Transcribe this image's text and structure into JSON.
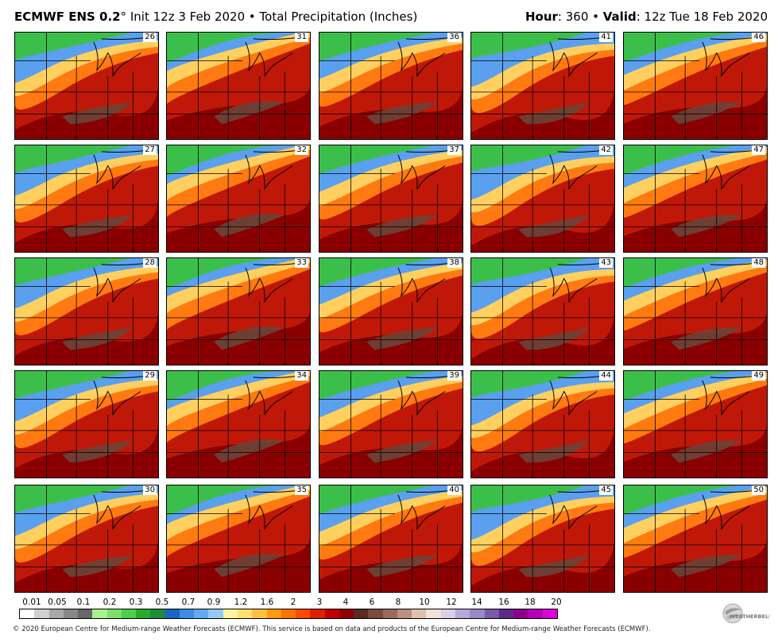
{
  "header": {
    "model": "ECMWF ENS 0.2",
    "degree": "°",
    "init": " Init 12z 3 Feb 2020 • Total Precipitation (Inches)",
    "hour_label": "Hour",
    "hour_value": ": 360 • ",
    "valid_label": "Valid",
    "valid_value": ": 12z Tue 18 Feb 2020"
  },
  "members": [
    "26",
    "31",
    "36",
    "41",
    "46",
    "27",
    "32",
    "37",
    "42",
    "47",
    "28",
    "33",
    "38",
    "43",
    "48",
    "29",
    "34",
    "39",
    "44",
    "49",
    "30",
    "35",
    "40",
    "45",
    "50"
  ],
  "scale": {
    "labels": [
      "0.01",
      "0.05",
      "0.1",
      "0.2",
      "0.3",
      "0.5",
      "0.7",
      "0.9",
      "1.2",
      "1.6",
      "2",
      "3",
      "4",
      "6",
      "8",
      "10",
      "12",
      "14",
      "16",
      "18",
      "20"
    ],
    "colors": [
      "#ffffff",
      "#d0d0d0",
      "#a8a8a8",
      "#888888",
      "#686868",
      "#a6f28f",
      "#7be06a",
      "#4ccf4c",
      "#2aa92a",
      "#1e8c3a",
      "#1c64c8",
      "#3c8ce6",
      "#64aaf0",
      "#96c8f5",
      "#fff5a0",
      "#ffe070",
      "#ffc040",
      "#ff9a10",
      "#ff7000",
      "#ff4800",
      "#e02000",
      "#c00000",
      "#900000",
      "#5a2a20",
      "#7a4a3a",
      "#9a6a5a",
      "#bc9080",
      "#e0c0b0",
      "#f2e2d8",
      "#d8d0e8",
      "#b8a8d8",
      "#9a88c8",
      "#7a5aaa",
      "#5e2a8a",
      "#8c008c",
      "#b400b4",
      "#dc00dc"
    ]
  },
  "footer": "© 2020 European Centre for Medium-range Weather Forecasts (ECMWF). This service is based on data and products of the European Centre for Medium-range Weather Forecasts (ECMWF).",
  "logo": {
    "text": "WEATHERBELL"
  }
}
